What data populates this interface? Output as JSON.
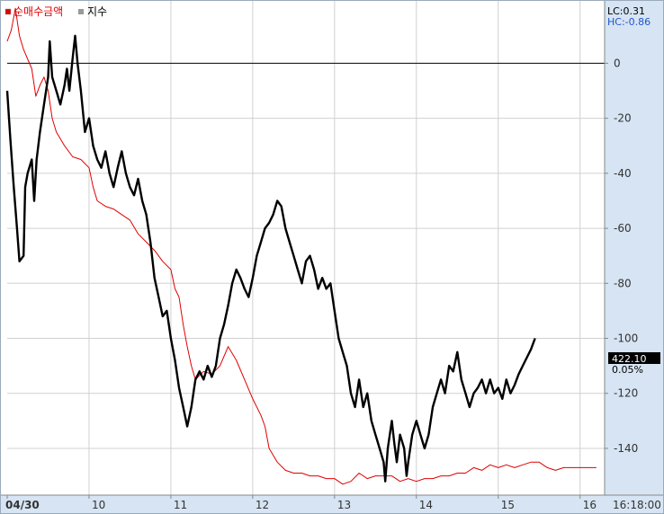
{
  "chart_data": {
    "type": "line",
    "legend": [
      {
        "label": "순매수금액",
        "color": "#e00000"
      },
      {
        "label": "지수",
        "color": "#000000"
      }
    ],
    "info": {
      "lc": "LC:0.31",
      "hc": "HC:-0.86",
      "price": "422.10",
      "change": "0.05%"
    },
    "y_axis": {
      "min": -157,
      "max": 23,
      "ticks": [
        0,
        -20,
        -40,
        -60,
        -80,
        -100,
        -120,
        -140
      ],
      "tick_labels": [
        "0",
        "-20",
        "-40",
        "-60",
        "-80",
        "-100",
        "-120",
        "-140"
      ]
    },
    "x_axis": {
      "min": 0,
      "max": 7.3,
      "ticks": [
        0,
        1,
        2,
        3,
        4,
        5,
        6,
        7
      ],
      "tick_labels": [
        "04/30",
        "10",
        "11",
        "12",
        "13",
        "14",
        "15",
        "16"
      ],
      "end_label": "16:18:00"
    },
    "series": [
      {
        "name": "순매수금액",
        "color": "#e00000",
        "points": [
          [
            0,
            8
          ],
          [
            0.05,
            12
          ],
          [
            0.1,
            20
          ],
          [
            0.15,
            10
          ],
          [
            0.2,
            5
          ],
          [
            0.3,
            -2
          ],
          [
            0.35,
            -12
          ],
          [
            0.4,
            -8
          ],
          [
            0.45,
            -5
          ],
          [
            0.5,
            -10
          ],
          [
            0.55,
            -20
          ],
          [
            0.6,
            -25
          ],
          [
            0.7,
            -30
          ],
          [
            0.8,
            -34
          ],
          [
            0.9,
            -35
          ],
          [
            1.0,
            -38
          ],
          [
            1.05,
            -45
          ],
          [
            1.1,
            -50
          ],
          [
            1.2,
            -52
          ],
          [
            1.3,
            -53
          ],
          [
            1.4,
            -55
          ],
          [
            1.5,
            -57
          ],
          [
            1.6,
            -62
          ],
          [
            1.7,
            -65
          ],
          [
            1.8,
            -68
          ],
          [
            1.9,
            -72
          ],
          [
            2.0,
            -75
          ],
          [
            2.05,
            -82
          ],
          [
            2.1,
            -85
          ],
          [
            2.15,
            -95
          ],
          [
            2.2,
            -103
          ],
          [
            2.25,
            -110
          ],
          [
            2.3,
            -115
          ],
          [
            2.4,
            -112
          ],
          [
            2.5,
            -113
          ],
          [
            2.6,
            -110
          ],
          [
            2.7,
            -103
          ],
          [
            2.8,
            -108
          ],
          [
            2.9,
            -115
          ],
          [
            3.0,
            -122
          ],
          [
            3.1,
            -128
          ],
          [
            3.15,
            -132
          ],
          [
            3.2,
            -140
          ],
          [
            3.3,
            -145
          ],
          [
            3.4,
            -148
          ],
          [
            3.5,
            -149
          ],
          [
            3.6,
            -149
          ],
          [
            3.7,
            -150
          ],
          [
            3.8,
            -150
          ],
          [
            3.9,
            -151
          ],
          [
            4.0,
            -151
          ],
          [
            4.1,
            -153
          ],
          [
            4.2,
            -152
          ],
          [
            4.3,
            -149
          ],
          [
            4.4,
            -151
          ],
          [
            4.5,
            -150
          ],
          [
            4.6,
            -150
          ],
          [
            4.7,
            -150
          ],
          [
            4.8,
            -152
          ],
          [
            4.9,
            -151
          ],
          [
            5.0,
            -152
          ],
          [
            5.1,
            -151
          ],
          [
            5.2,
            -151
          ],
          [
            5.3,
            -150
          ],
          [
            5.4,
            -150
          ],
          [
            5.5,
            -149
          ],
          [
            5.6,
            -149
          ],
          [
            5.7,
            -147
          ],
          [
            5.8,
            -148
          ],
          [
            5.9,
            -146
          ],
          [
            6.0,
            -147
          ],
          [
            6.1,
            -146
          ],
          [
            6.2,
            -147
          ],
          [
            6.3,
            -146
          ],
          [
            6.4,
            -145
          ],
          [
            6.5,
            -145
          ],
          [
            6.6,
            -147
          ],
          [
            6.7,
            -148
          ],
          [
            6.8,
            -147
          ],
          [
            6.9,
            -147
          ],
          [
            7.0,
            -147
          ],
          [
            7.2,
            -147
          ]
        ]
      },
      {
        "name": "지수",
        "color": "#000000",
        "points": [
          [
            0,
            -10
          ],
          [
            0.04,
            -28
          ],
          [
            0.08,
            -45
          ],
          [
            0.12,
            -60
          ],
          [
            0.15,
            -72
          ],
          [
            0.2,
            -70
          ],
          [
            0.22,
            -45
          ],
          [
            0.25,
            -40
          ],
          [
            0.3,
            -35
          ],
          [
            0.33,
            -50
          ],
          [
            0.36,
            -35
          ],
          [
            0.4,
            -25
          ],
          [
            0.45,
            -15
          ],
          [
            0.5,
            -5
          ],
          [
            0.52,
            8
          ],
          [
            0.55,
            -5
          ],
          [
            0.6,
            -10
          ],
          [
            0.65,
            -15
          ],
          [
            0.7,
            -8
          ],
          [
            0.73,
            -2
          ],
          [
            0.76,
            -10
          ],
          [
            0.8,
            2
          ],
          [
            0.83,
            10
          ],
          [
            0.86,
            0
          ],
          [
            0.9,
            -10
          ],
          [
            0.95,
            -25
          ],
          [
            1.0,
            -20
          ],
          [
            1.05,
            -30
          ],
          [
            1.1,
            -35
          ],
          [
            1.15,
            -38
          ],
          [
            1.2,
            -32
          ],
          [
            1.25,
            -40
          ],
          [
            1.3,
            -45
          ],
          [
            1.35,
            -38
          ],
          [
            1.4,
            -32
          ],
          [
            1.45,
            -40
          ],
          [
            1.5,
            -45
          ],
          [
            1.55,
            -48
          ],
          [
            1.6,
            -42
          ],
          [
            1.65,
            -50
          ],
          [
            1.7,
            -55
          ],
          [
            1.75,
            -65
          ],
          [
            1.8,
            -78
          ],
          [
            1.85,
            -85
          ],
          [
            1.9,
            -92
          ],
          [
            1.95,
            -90
          ],
          [
            2.0,
            -100
          ],
          [
            2.05,
            -108
          ],
          [
            2.1,
            -118
          ],
          [
            2.15,
            -125
          ],
          [
            2.2,
            -132
          ],
          [
            2.25,
            -125
          ],
          [
            2.3,
            -115
          ],
          [
            2.35,
            -112
          ],
          [
            2.4,
            -115
          ],
          [
            2.45,
            -110
          ],
          [
            2.5,
            -114
          ],
          [
            2.55,
            -110
          ],
          [
            2.6,
            -100
          ],
          [
            2.65,
            -95
          ],
          [
            2.7,
            -88
          ],
          [
            2.75,
            -80
          ],
          [
            2.8,
            -75
          ],
          [
            2.85,
            -78
          ],
          [
            2.9,
            -82
          ],
          [
            2.95,
            -85
          ],
          [
            3.0,
            -78
          ],
          [
            3.05,
            -70
          ],
          [
            3.1,
            -65
          ],
          [
            3.15,
            -60
          ],
          [
            3.2,
            -58
          ],
          [
            3.25,
            -55
          ],
          [
            3.3,
            -50
          ],
          [
            3.35,
            -52
          ],
          [
            3.4,
            -60
          ],
          [
            3.45,
            -65
          ],
          [
            3.5,
            -70
          ],
          [
            3.55,
            -75
          ],
          [
            3.6,
            -80
          ],
          [
            3.65,
            -72
          ],
          [
            3.7,
            -70
          ],
          [
            3.75,
            -75
          ],
          [
            3.8,
            -82
          ],
          [
            3.85,
            -78
          ],
          [
            3.9,
            -82
          ],
          [
            3.95,
            -80
          ],
          [
            4.0,
            -90
          ],
          [
            4.05,
            -100
          ],
          [
            4.1,
            -105
          ],
          [
            4.15,
            -110
          ],
          [
            4.2,
            -120
          ],
          [
            4.25,
            -125
          ],
          [
            4.3,
            -115
          ],
          [
            4.35,
            -125
          ],
          [
            4.4,
            -120
          ],
          [
            4.45,
            -130
          ],
          [
            4.5,
            -135
          ],
          [
            4.55,
            -140
          ],
          [
            4.6,
            -145
          ],
          [
            4.62,
            -152
          ],
          [
            4.65,
            -140
          ],
          [
            4.7,
            -130
          ],
          [
            4.73,
            -138
          ],
          [
            4.76,
            -145
          ],
          [
            4.8,
            -135
          ],
          [
            4.85,
            -140
          ],
          [
            4.88,
            -150
          ],
          [
            4.9,
            -145
          ],
          [
            4.95,
            -135
          ],
          [
            5.0,
            -130
          ],
          [
            5.05,
            -135
          ],
          [
            5.1,
            -140
          ],
          [
            5.15,
            -135
          ],
          [
            5.2,
            -125
          ],
          [
            5.25,
            -120
          ],
          [
            5.3,
            -115
          ],
          [
            5.35,
            -120
          ],
          [
            5.4,
            -110
          ],
          [
            5.45,
            -112
          ],
          [
            5.5,
            -105
          ],
          [
            5.55,
            -115
          ],
          [
            5.6,
            -120
          ],
          [
            5.65,
            -125
          ],
          [
            5.7,
            -120
          ],
          [
            5.75,
            -118
          ],
          [
            5.8,
            -115
          ],
          [
            5.85,
            -120
          ],
          [
            5.9,
            -115
          ],
          [
            5.95,
            -120
          ],
          [
            6.0,
            -118
          ],
          [
            6.05,
            -122
          ],
          [
            6.1,
            -115
          ],
          [
            6.15,
            -120
          ],
          [
            6.2,
            -117
          ],
          [
            6.25,
            -113
          ],
          [
            6.3,
            -110
          ],
          [
            6.35,
            -107
          ],
          [
            6.4,
            -104
          ],
          [
            6.45,
            -100
          ]
        ]
      }
    ]
  }
}
